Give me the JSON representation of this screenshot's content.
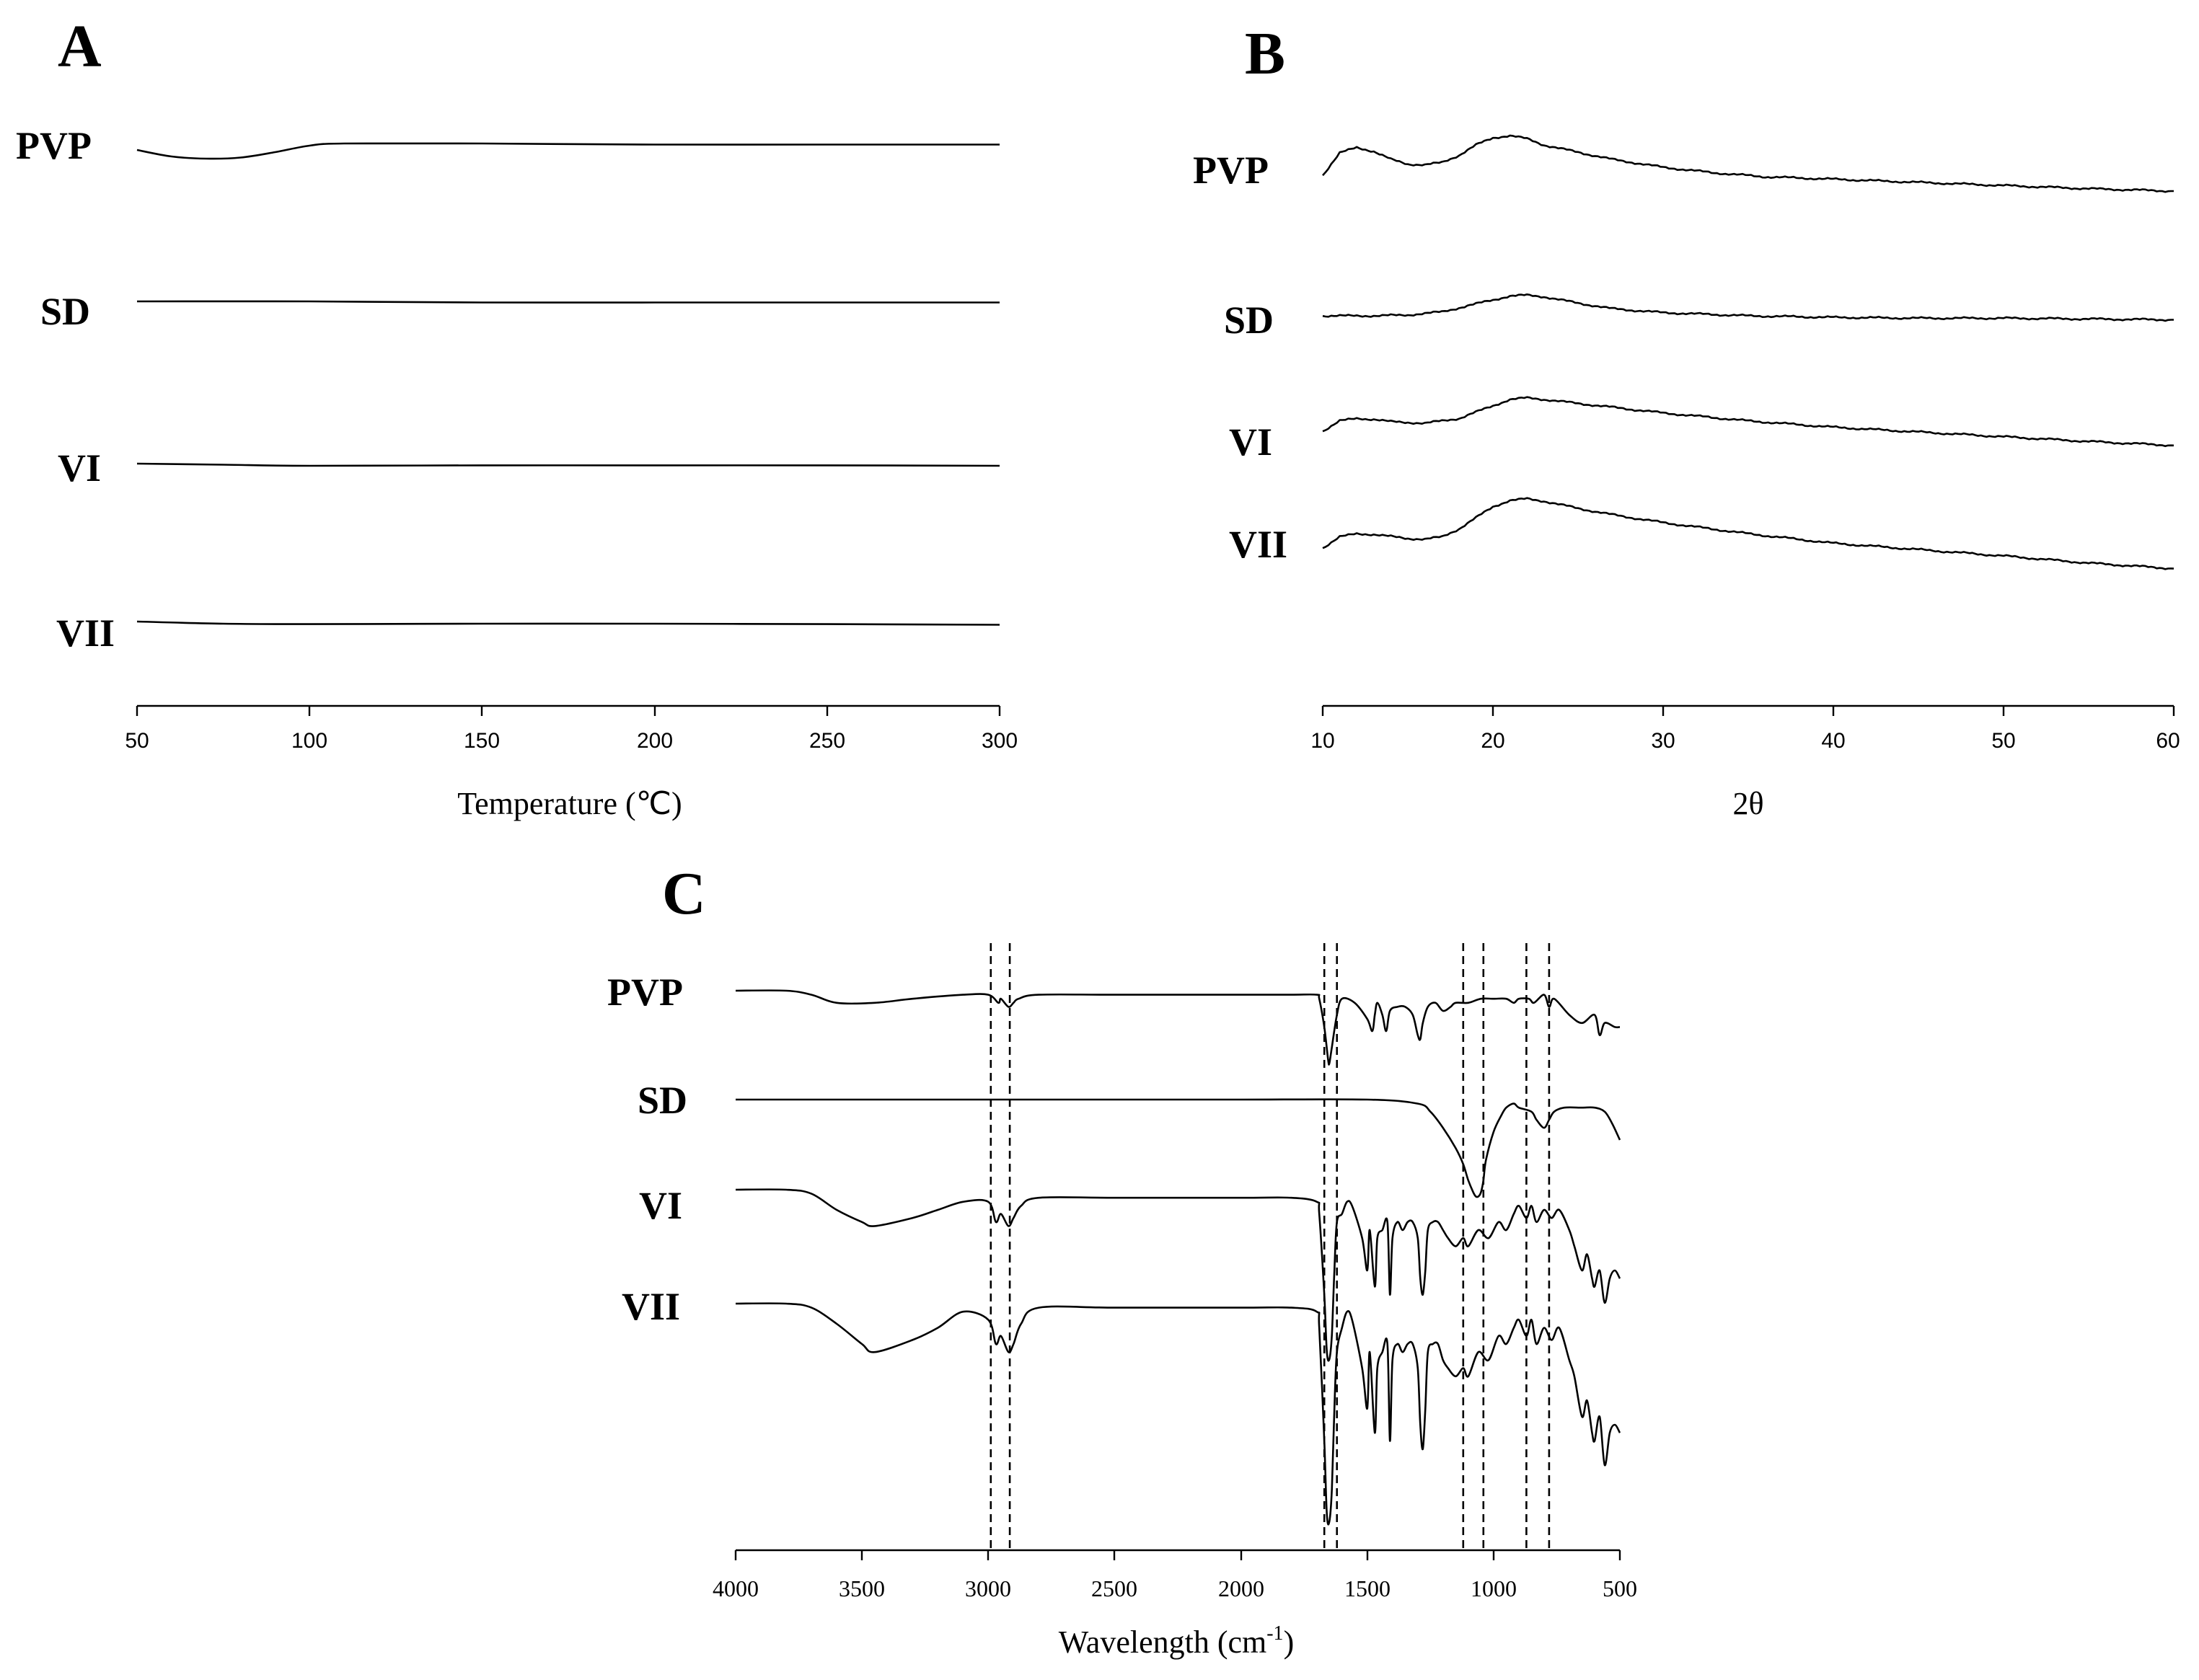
{
  "figure": {
    "panels": [
      {
        "id": "A",
        "label": "A",
        "xlabel": "Temperature (℃)",
        "xlim": [
          50,
          300
        ],
        "xticks": [
          "50",
          "100",
          "150",
          "200",
          "250",
          "300"
        ],
        "traces": [
          "PVP",
          "SD",
          "VI",
          "VII"
        ]
      },
      {
        "id": "B",
        "label": "B",
        "xlabel": "2θ",
        "xlim": [
          10,
          60
        ],
        "xticks": [
          "10",
          "20",
          "30",
          "40",
          "50",
          "60"
        ],
        "traces": [
          "PVP",
          "SD",
          "VI",
          "VII"
        ]
      },
      {
        "id": "C",
        "label": "C",
        "xlabel_main": "Wavelength (cm",
        "xlabel_sup": "-1",
        "xlabel_end": ")",
        "xlim": [
          4000,
          500
        ],
        "xticks": [
          "4000",
          "3500",
          "3000",
          "2500",
          "2000",
          "1500",
          "1000",
          "500"
        ],
        "traces": [
          "PVP",
          "SD",
          "VI",
          "VII"
        ]
      }
    ]
  },
  "chart_data": [
    {
      "type": "line",
      "title": "A",
      "xlabel": "Temperature (℃)",
      "ylabel": "",
      "xlim": [
        50,
        300
      ],
      "xticks": [
        50,
        100,
        150,
        200,
        250,
        300
      ],
      "grid": false,
      "series": [
        {
          "name": "PVP",
          "x": [
            50,
            60,
            70,
            80,
            90,
            100,
            110,
            150,
            200,
            250,
            300
          ],
          "values": [
            0,
            -0.3,
            -0.4,
            -0.35,
            -0.1,
            0.2,
            0.3,
            0.3,
            0.25,
            0.25,
            0.25
          ]
        },
        {
          "name": "SD",
          "x": [
            50,
            100,
            150,
            200,
            250,
            300
          ],
          "values": [
            0,
            0,
            -0.05,
            -0.05,
            -0.05,
            -0.05
          ]
        },
        {
          "name": "VI",
          "x": [
            50,
            75,
            100,
            150,
            200,
            250,
            300
          ],
          "values": [
            0,
            -0.05,
            -0.1,
            -0.08,
            -0.08,
            -0.08,
            -0.1
          ]
        },
        {
          "name": "VII",
          "x": [
            50,
            75,
            100,
            150,
            200,
            250,
            300
          ],
          "values": [
            0,
            -0.1,
            -0.12,
            -0.1,
            -0.1,
            -0.12,
            -0.15
          ]
        }
      ]
    },
    {
      "type": "line",
      "title": "B",
      "xlabel": "2θ",
      "ylabel": "",
      "xlim": [
        10,
        60
      ],
      "xticks": [
        10,
        20,
        30,
        40,
        50,
        60
      ],
      "grid": false,
      "series": [
        {
          "name": "PVP",
          "x": [
            10,
            11,
            12,
            13,
            14,
            15,
            16,
            17,
            18,
            19,
            20,
            21,
            22,
            23,
            25,
            27,
            30,
            33,
            36,
            40,
            45,
            50,
            55,
            60
          ],
          "values": [
            0,
            2.8,
            3.5,
            3.0,
            2.0,
            1.4,
            1.3,
            1.6,
            2.5,
            3.8,
            4.7,
            5.0,
            4.6,
            3.8,
            2.9,
            2.0,
            1.0,
            0.3,
            -0.2,
            -0.5,
            -0.9,
            -1.3,
            -1.7,
            -2.0
          ]
        },
        {
          "name": "SD",
          "x": [
            10,
            13,
            15,
            17,
            19,
            21,
            22,
            23,
            25,
            27,
            30,
            35,
            40,
            45,
            50,
            55,
            60
          ],
          "values": [
            0,
            0,
            0.1,
            0.5,
            1.5,
            2.5,
            2.6,
            2.4,
            1.6,
            0.9,
            0.4,
            0.0,
            -0.2,
            -0.3,
            -0.3,
            -0.4,
            -0.5
          ]
        },
        {
          "name": "VI",
          "x": [
            10,
            11,
            12,
            13,
            14,
            16,
            18,
            20,
            21,
            22,
            23,
            25,
            30,
            35,
            40,
            45,
            50,
            55,
            60
          ],
          "values": [
            0,
            1.3,
            1.6,
            1.5,
            1.2,
            1.0,
            1.6,
            3.2,
            4.0,
            4.2,
            4.0,
            3.5,
            2.3,
            1.3,
            0.5,
            -0.1,
            -0.7,
            -1.3,
            -1.8
          ]
        },
        {
          "name": "VII",
          "x": [
            10,
            11,
            12,
            13,
            15,
            16,
            17,
            18,
            19,
            20,
            21,
            22,
            23,
            25,
            27,
            30,
            35,
            40,
            45,
            50,
            55,
            60
          ],
          "values": [
            0,
            1.4,
            1.8,
            1.7,
            1.2,
            1.1,
            1.4,
            2.4,
            3.8,
            5.2,
            6.0,
            6.2,
            5.9,
            5.0,
            4.2,
            3.2,
            1.8,
            0.6,
            -0.2,
            -1.0,
            -1.9,
            -2.6
          ]
        }
      ]
    },
    {
      "type": "line",
      "title": "C",
      "xlabel": "Wavelength (cm-1)",
      "ylabel": "",
      "xlim": [
        4000,
        500
      ],
      "xticks": [
        4000,
        3500,
        3000,
        2500,
        2000,
        1500,
        1000,
        500
      ],
      "grid": false,
      "reference_lines": [
        2990,
        2915,
        1670,
        1620,
        1120,
        1040,
        870,
        780
      ],
      "series": [
        {
          "name": "PVP",
          "x": [
            4000,
            3800,
            3700,
            3600,
            3450,
            3300,
            3100,
            3000,
            2960,
            2950,
            2920,
            2900,
            2880,
            2800,
            2500,
            2000,
            1800,
            1700,
            1690,
            1670,
            1655,
            1650,
            1640,
            1620,
            1600,
            1550,
            1500,
            1480,
            1470,
            1460,
            1440,
            1425,
            1410,
            1380,
            1350,
            1320,
            1300,
            1290,
            1280,
            1260,
            1230,
            1200,
            1170,
            1150,
            1100,
            1050,
            1000,
            950,
            920,
            900,
            860,
            840,
            800,
            780,
            760,
            700,
            650,
            600,
            580,
            560,
            520,
            500
          ],
          "values": [
            0,
            0,
            -1,
            -3,
            -3,
            -2,
            -1,
            -1,
            -3,
            -2,
            -4,
            -3,
            -2,
            -1,
            -1,
            -1,
            -1,
            -1,
            -2,
            -9,
            -17,
            -18,
            -14,
            -6,
            -2,
            -3,
            -7,
            -10,
            -6,
            -3,
            -6,
            -10,
            -5,
            -4,
            -4,
            -6,
            -11,
            -12,
            -8,
            -4,
            -3,
            -5,
            -4,
            -3,
            -3,
            -2,
            -2,
            -2,
            -3,
            -2,
            -2,
            -3,
            -1,
            -4,
            -2,
            -6,
            -8,
            -6,
            -11,
            -8,
            -9,
            -9
          ]
        },
        {
          "name": "SD",
          "x": [
            4000,
            3500,
            3000,
            2500,
            2000,
            1500,
            1300,
            1250,
            1200,
            1150,
            1120,
            1100,
            1080,
            1070,
            1060,
            1050,
            1040,
            1030,
            1000,
            970,
            950,
            920,
            900,
            850,
            830,
            800,
            780,
            760,
            720,
            650,
            600,
            560,
            530,
            500
          ],
          "values": [
            0,
            0,
            0,
            0,
            0,
            0,
            -1,
            -3,
            -7,
            -12,
            -16,
            -20,
            -23,
            -24,
            -24,
            -23,
            -20,
            -15,
            -8,
            -4,
            -2,
            -1,
            -2,
            -3,
            -5,
            -7,
            -5,
            -3,
            -2,
            -2,
            -2,
            -3,
            -6,
            -10
          ]
        },
        {
          "name": "VI",
          "x": [
            4000,
            3800,
            3700,
            3600,
            3500,
            3450,
            3300,
            3200,
            3100,
            3000,
            2970,
            2950,
            2920,
            2900,
            2870,
            2800,
            2500,
            2000,
            1800,
            1700,
            1690,
            1670,
            1660,
            1650,
            1640,
            1630,
            1620,
            1600,
            1580,
            1560,
            1520,
            1500,
            1490,
            1470,
            1460,
            1440,
            1420,
            1410,
            1400,
            1380,
            1360,
            1340,
            1320,
            1300,
            1290,
            1280,
            1270,
            1260,
            1240,
            1220,
            1200,
            1180,
            1150,
            1120,
            1100,
            1060,
            1020,
            980,
            950,
            920,
            900,
            870,
            850,
            830,
            800,
            770,
            740,
            700,
            680,
            650,
            630,
            610,
            600,
            580,
            560,
            540,
            520,
            500
          ],
          "values": [
            0,
            0,
            -1,
            -5,
            -8,
            -9,
            -7,
            -5,
            -3,
            -3,
            -8,
            -6,
            -9,
            -7,
            -4,
            -2,
            -2,
            -2,
            -2,
            -3,
            -6,
            -26,
            -40,
            -42,
            -36,
            -20,
            -8,
            -6,
            -3,
            -4,
            -12,
            -20,
            -10,
            -24,
            -12,
            -10,
            -8,
            -26,
            -12,
            -8,
            -10,
            -8,
            -8,
            -12,
            -22,
            -26,
            -20,
            -10,
            -8,
            -8,
            -10,
            -12,
            -14,
            -12,
            -14,
            -10,
            -12,
            -8,
            -10,
            -6,
            -4,
            -7,
            -4,
            -8,
            -5,
            -7,
            -5,
            -10,
            -14,
            -20,
            -16,
            -22,
            -24,
            -20,
            -28,
            -22,
            -20,
            -22
          ]
        },
        {
          "name": "VII",
          "x": [
            4000,
            3800,
            3700,
            3600,
            3500,
            3450,
            3300,
            3200,
            3100,
            3000,
            2970,
            2950,
            2920,
            2900,
            2870,
            2800,
            2500,
            2000,
            1800,
            1700,
            1690,
            1670,
            1660,
            1650,
            1640,
            1630,
            1620,
            1600,
            1580,
            1560,
            1520,
            1500,
            1490,
            1470,
            1460,
            1440,
            1420,
            1410,
            1400,
            1380,
            1360,
            1340,
            1320,
            1300,
            1290,
            1280,
            1270,
            1260,
            1240,
            1220,
            1200,
            1180,
            1150,
            1120,
            1100,
            1060,
            1020,
            980,
            950,
            920,
            900,
            870,
            850,
            830,
            800,
            770,
            740,
            700,
            680,
            650,
            630,
            610,
            600,
            580,
            560,
            540,
            520,
            500
          ],
          "values": [
            0,
            0,
            -1,
            -5,
            -10,
            -12,
            -9,
            -6,
            -2,
            -4,
            -10,
            -8,
            -12,
            -10,
            -5,
            -1,
            -1,
            -1,
            -1,
            -2,
            -6,
            -34,
            -52,
            -54,
            -46,
            -26,
            -12,
            -6,
            -2,
            -4,
            -16,
            -26,
            -12,
            -32,
            -16,
            -12,
            -10,
            -34,
            -14,
            -10,
            -12,
            -10,
            -10,
            -16,
            -30,
            -36,
            -26,
            -12,
            -10,
            -10,
            -14,
            -16,
            -18,
            -16,
            -18,
            -12,
            -14,
            -8,
            -10,
            -6,
            -4,
            -8,
            -4,
            -10,
            -6,
            -9,
            -6,
            -14,
            -18,
            -28,
            -24,
            -32,
            -34,
            -28,
            -40,
            -32,
            -30,
            -32
          ]
        }
      ]
    }
  ]
}
